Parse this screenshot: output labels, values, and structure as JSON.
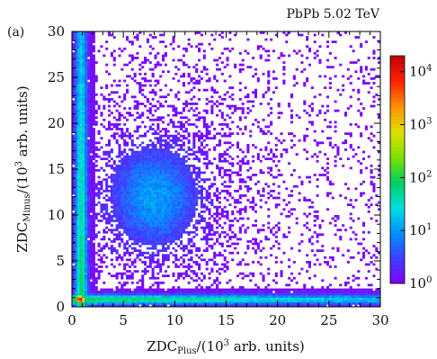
{
  "chart_data": {
    "type": "heatmap",
    "panel_label": "(a)",
    "annotation": "PbPb 5.02 TeV",
    "xlabel": {
      "base": "ZDC",
      "sub": "Plus",
      "mid": "/(10",
      "sup": "3",
      "tail": " arb. units)"
    },
    "ylabel": {
      "base": "ZDC",
      "sub": "Minus",
      "mid": "/(10",
      "sup": "3",
      "tail": " arb. units)"
    },
    "xlim": [
      0,
      30
    ],
    "ylim": [
      0,
      30
    ],
    "x_ticks": [
      0,
      5,
      10,
      15,
      20,
      25,
      30
    ],
    "y_ticks": [
      0,
      5,
      10,
      15,
      20,
      25,
      30
    ],
    "z_scale": "log",
    "zlim": [
      1,
      20000
    ],
    "colorbar_ticks": [
      {
        "base": "10",
        "exp": "0",
        "value": 1
      },
      {
        "base": "10",
        "exp": "1",
        "value": 10
      },
      {
        "base": "10",
        "exp": "2",
        "value": 100
      },
      {
        "base": "10",
        "exp": "3",
        "value": 1000
      },
      {
        "base": "10",
        "exp": "4",
        "value": 10000
      }
    ],
    "colormap": [
      "#7f00ff",
      "#3f3fff",
      "#0090ff",
      "#00e0e0",
      "#00d060",
      "#80e000",
      "#e0e000",
      "#ff9000",
      "#ff2000",
      "#c00000"
    ],
    "features": [
      {
        "name": "peak",
        "x": 0.8,
        "y": 0.8,
        "max_count": 20000
      },
      {
        "name": "vertical band",
        "x_center": 0.8,
        "y_range": [
          0,
          30
        ]
      },
      {
        "name": "horizontal band",
        "y_center": 0.8,
        "x_range": [
          0,
          30
        ]
      },
      {
        "name": "central cluster",
        "x_center": 8,
        "y_center": 12
      }
    ]
  }
}
